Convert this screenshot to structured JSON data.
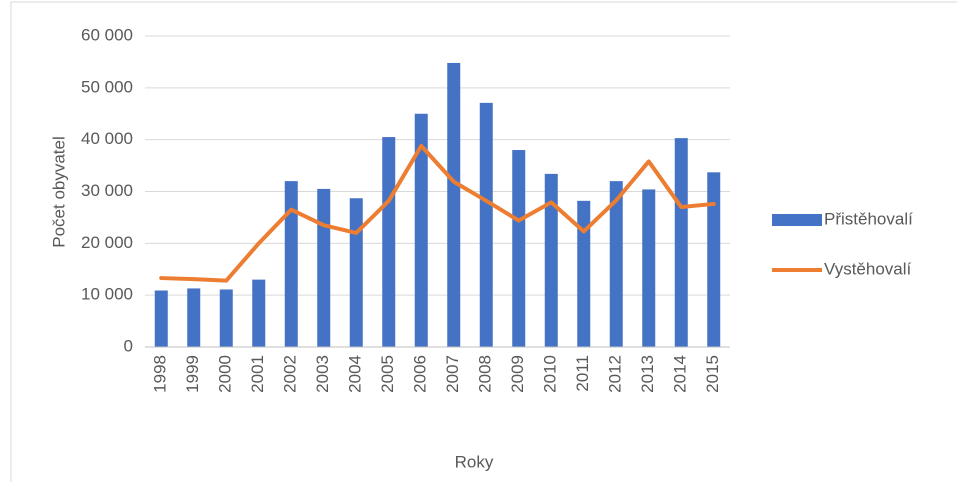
{
  "chart_data": {
    "type": "combo",
    "y_axis_label": "Počet obyvatel",
    "x_axis_label": "Roky",
    "categories": [
      "1998",
      "1999",
      "2000",
      "2001",
      "2002",
      "2003",
      "2004",
      "2005",
      "2006",
      "2007",
      "2008",
      "2009",
      "2010",
      "2011",
      "2012",
      "2013",
      "2014",
      "2015"
    ],
    "series": [
      {
        "name": "Přistěhovalí",
        "type": "bar",
        "color": "#4472c4",
        "values": [
          10900,
          11300,
          11100,
          13000,
          32000,
          30500,
          28700,
          40500,
          45000,
          54800,
          47100,
          38000,
          33400,
          28200,
          32000,
          30400,
          40300,
          33700
        ]
      },
      {
        "name": "Vystěhovalí",
        "type": "line",
        "color": "#ed7d31",
        "values": [
          13300,
          13100,
          12800,
          20000,
          26500,
          23500,
          22000,
          28200,
          38800,
          31900,
          28200,
          24400,
          27900,
          22300,
          28300,
          35800,
          27000,
          27600
        ]
      }
    ],
    "ylim": [
      0,
      60000
    ],
    "yticks": [
      0,
      {
        "value": 10000,
        "label": "10 000"
      },
      {
        "value": 20000,
        "label": "20 000"
      },
      {
        "value": 30000,
        "label": "30 000"
      },
      {
        "value": 40000,
        "label": "40 000"
      },
      {
        "value": 50000,
        "label": "50 000"
      },
      {
        "value": 60000,
        "label": "60 000"
      }
    ],
    "grid": true,
    "legend": "right"
  }
}
